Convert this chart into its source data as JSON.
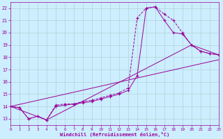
{
  "xlabel": "Windchill (Refroidissement éolien,°C)",
  "ylabel": "",
  "xlim": [
    0,
    23
  ],
  "ylim": [
    12.5,
    22.5
  ],
  "yticks": [
    13,
    14,
    15,
    16,
    17,
    18,
    19,
    20,
    21,
    22
  ],
  "xticks": [
    0,
    1,
    2,
    3,
    4,
    5,
    6,
    7,
    8,
    9,
    10,
    11,
    12,
    13,
    14,
    15,
    16,
    17,
    18,
    19,
    20,
    21,
    22,
    23
  ],
  "background_color": "#cceeff",
  "grid_color": "#aacccc",
  "line_color": "#990099",
  "line1": {
    "x": [
      0,
      1,
      2,
      3,
      4,
      5,
      6,
      7,
      8,
      9,
      10,
      11,
      12,
      13,
      14,
      15,
      16,
      17,
      18,
      19,
      20,
      21,
      22,
      23
    ],
    "y": [
      14.0,
      13.9,
      13.0,
      13.2,
      12.9,
      14.1,
      14.2,
      14.2,
      14.4,
      14.5,
      14.7,
      14.9,
      15.1,
      15.5,
      21.2,
      22.0,
      22.1,
      21.5,
      21.0,
      20.0,
      19.0,
      18.5,
      18.3,
      18.2
    ]
  },
  "line2": {
    "x": [
      0,
      1,
      2,
      3,
      4,
      5,
      6,
      7,
      8,
      9,
      10,
      11,
      12,
      13,
      14,
      15,
      16,
      17,
      18,
      19,
      20,
      21,
      22,
      23
    ],
    "y": [
      14.0,
      13.9,
      13.0,
      13.2,
      12.9,
      14.0,
      14.1,
      14.2,
      14.3,
      14.4,
      14.6,
      14.8,
      15.0,
      15.3,
      16.5,
      22.0,
      22.1,
      21.0,
      20.0,
      19.9,
      19.0,
      18.5,
      18.3,
      18.2
    ]
  },
  "line3": {
    "x": [
      0,
      4,
      20,
      23
    ],
    "y": [
      14.0,
      12.9,
      19.0,
      18.2
    ]
  },
  "line4": {
    "x": [
      0,
      23
    ],
    "y": [
      14.0,
      17.8
    ]
  }
}
